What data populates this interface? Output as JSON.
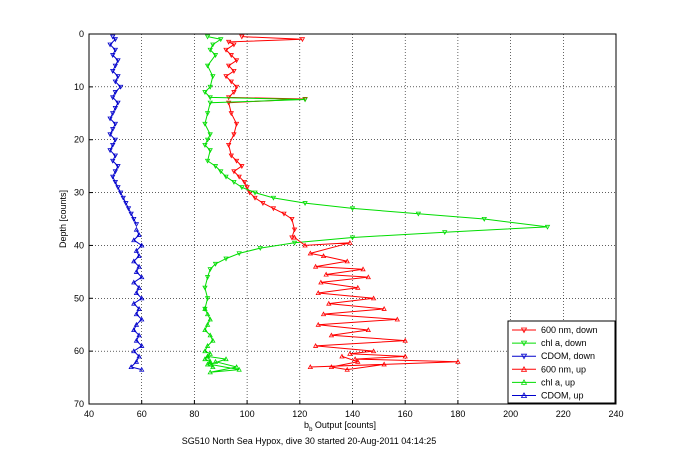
{
  "chart_data": {
    "type": "line",
    "xlabel_main": "b",
    "xlabel_sub": "b",
    "xlabel_rest": " Output [counts]",
    "ylabel": "Depth [counts]",
    "caption": "SG510 North Sea Hypox, dive 30 started 20-Aug-2011 04:14:25",
    "xlim": [
      40,
      240
    ],
    "ylim": [
      0,
      70
    ],
    "y_reversed": true,
    "grid": true,
    "x_ticks": [
      "40",
      "60",
      "80",
      "100",
      "120",
      "140",
      "160",
      "180",
      "200",
      "220",
      "240"
    ],
    "y_ticks": [
      "0",
      "10",
      "20",
      "30",
      "40",
      "50",
      "60",
      "70"
    ],
    "legend_position": "bottom-right",
    "series": [
      {
        "name": "600 nm, down",
        "color": "#ff0000",
        "marker": "triangle-down",
        "x": [
          98,
          121,
          93,
          95,
          92,
          94,
          96,
          93,
          95,
          92,
          94,
          96,
          95,
          93,
          122,
          93,
          94,
          96,
          95,
          93,
          94,
          96,
          98,
          95,
          97,
          99,
          100,
          101,
          103,
          106,
          110,
          114,
          117,
          118,
          117
        ],
        "y": [
          0.5,
          1,
          1.5,
          2,
          3,
          4,
          5,
          6,
          7,
          8,
          9,
          10,
          11,
          12,
          12.3,
          13,
          15,
          17,
          19,
          21,
          23,
          24,
          25,
          26,
          27,
          28,
          29,
          30,
          31,
          32,
          33,
          34,
          35,
          37,
          38.5
        ]
      },
      {
        "name": "chl a, down",
        "color": "#00dd00",
        "marker": "triangle-down",
        "x": [
          85,
          90,
          87,
          86,
          88,
          85,
          87,
          86,
          84,
          86,
          122,
          86,
          85,
          84,
          86,
          85,
          84,
          86,
          85,
          88,
          90,
          92,
          95,
          98,
          103,
          110,
          122,
          140,
          165,
          190,
          214,
          175,
          140,
          118,
          105,
          97,
          92,
          88,
          86,
          85,
          84,
          85,
          84
        ],
        "y": [
          0.5,
          1,
          2,
          3,
          4,
          6,
          8,
          10,
          11,
          12,
          12.4,
          13,
          15,
          17,
          19,
          20,
          21,
          22,
          24,
          25,
          26,
          27,
          28,
          29,
          30,
          31,
          32,
          33,
          34,
          35,
          36.5,
          37.5,
          38.5,
          39.5,
          40.5,
          41.5,
          42.5,
          43.5,
          44.5,
          46,
          48,
          50,
          52
        ]
      },
      {
        "name": "CDOM, down",
        "color": "#0000cc",
        "marker": "triangle-down",
        "x": [
          49,
          50,
          48,
          50,
          49,
          51,
          50,
          49,
          51,
          50,
          52,
          50,
          49,
          51,
          50,
          49,
          48,
          50,
          49,
          48,
          50,
          49,
          48,
          50,
          49,
          51,
          50,
          49,
          50,
          51,
          52,
          53,
          54,
          55,
          56,
          57,
          58
        ],
        "y": [
          0.5,
          1,
          2,
          3,
          4,
          5,
          6,
          7,
          8,
          9,
          10,
          11,
          12,
          13,
          14,
          15,
          16,
          17,
          18,
          19,
          20,
          21,
          22,
          23,
          24,
          25,
          26,
          27,
          28,
          29,
          30,
          31,
          32,
          33,
          34,
          35,
          36
        ]
      },
      {
        "name": "600 nm, up",
        "color": "#ff0000",
        "marker": "triangle-up",
        "x": [
          118,
          122,
          139,
          124,
          129,
          138,
          126,
          144,
          130,
          146,
          128,
          142,
          127,
          148,
          131,
          152,
          129,
          157,
          127,
          146,
          132,
          160,
          126,
          148,
          139,
          160,
          141,
          180,
          124,
          152,
          138,
          132,
          142,
          136
        ],
        "y": [
          38.5,
          40,
          39.5,
          41.5,
          42,
          43,
          44,
          44.5,
          45.5,
          46,
          47,
          48,
          49,
          50,
          51,
          52,
          53,
          54,
          55,
          56,
          57,
          58,
          59,
          60,
          60.5,
          61,
          61.5,
          62,
          63,
          62.5,
          63.5,
          63,
          62,
          61
        ]
      },
      {
        "name": "chl a, up",
        "color": "#00dd00",
        "marker": "triangle-up",
        "x": [
          84,
          85,
          86,
          85,
          84,
          86,
          87,
          85,
          84,
          86,
          85,
          84,
          86,
          85,
          87,
          86,
          85,
          92,
          86,
          97,
          86,
          96,
          88
        ],
        "y": [
          52,
          53,
          54,
          55,
          56,
          57,
          58,
          59,
          60,
          60.5,
          61,
          61.5,
          62,
          62.5,
          63,
          62,
          61,
          61.5,
          62.5,
          63.5,
          64,
          63,
          62
        ]
      },
      {
        "name": "CDOM, up",
        "color": "#0000cc",
        "marker": "triangle-up",
        "x": [
          58,
          59,
          57,
          60,
          58,
          59,
          57,
          59,
          58,
          60,
          57,
          59,
          58,
          60,
          57,
          59,
          58,
          60,
          58,
          57,
          59,
          58,
          60,
          57,
          59,
          58,
          56,
          60
        ],
        "y": [
          37,
          38,
          39,
          40,
          41,
          42,
          43,
          44,
          45,
          46,
          47,
          48,
          49,
          50,
          51,
          52,
          53,
          54,
          55,
          56,
          57,
          58,
          59,
          60,
          61,
          62,
          63,
          63.5
        ]
      }
    ]
  }
}
